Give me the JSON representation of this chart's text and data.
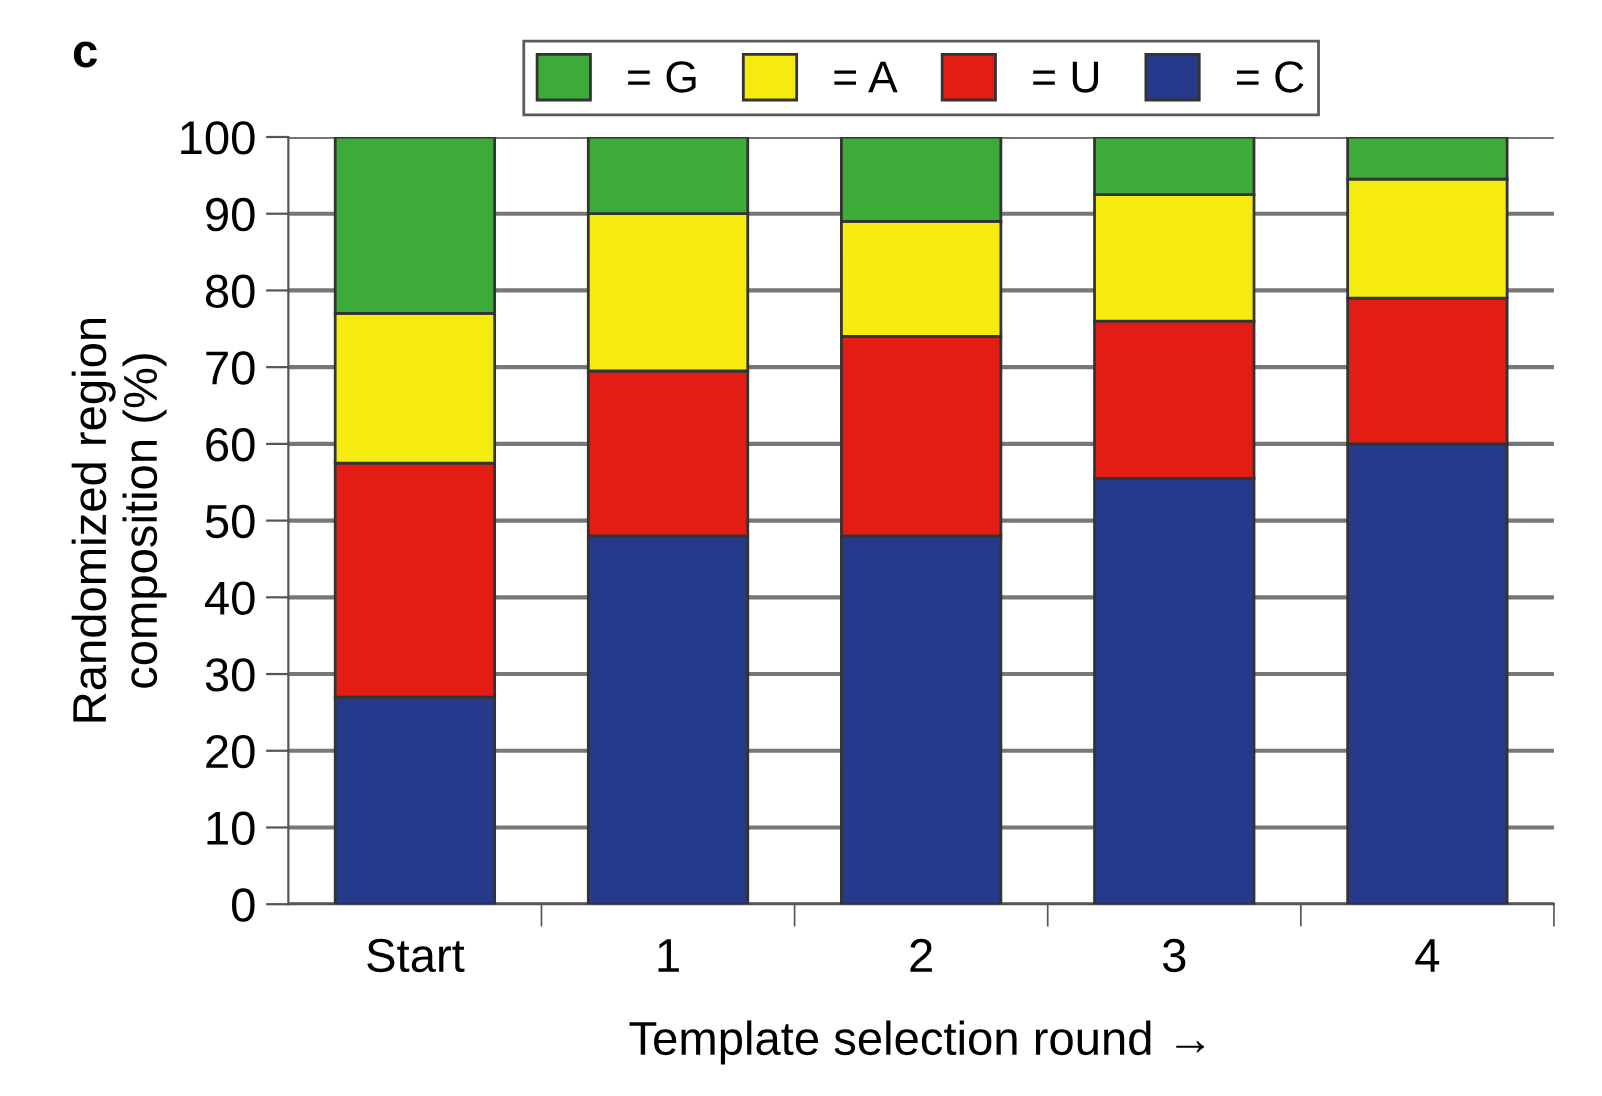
{
  "chart_data": {
    "type": "bar",
    "stacked": true,
    "categories": [
      "Start",
      "1",
      "2",
      "3",
      "4"
    ],
    "series": [
      {
        "name": "= C",
        "color": "#263a8c",
        "values": [
          27,
          48,
          48,
          55.5,
          60
        ]
      },
      {
        "name": "= U",
        "color": "#e31d13",
        "values": [
          30.5,
          21.5,
          26,
          20.5,
          19
        ]
      },
      {
        "name": "= A",
        "color": "#f6eb0f",
        "values": [
          19.5,
          20.5,
          15,
          16.5,
          15.5
        ]
      },
      {
        "name": "= G",
        "color": "#3dab37",
        "values": [
          23,
          10,
          11,
          7.5,
          5.5
        ]
      }
    ],
    "ylabel": "Randomized region\ncomposition (%)",
    "xlabel": "Template selection round →",
    "ylim": [
      0,
      100
    ],
    "yticks": [
      0,
      10,
      20,
      30,
      40,
      50,
      60,
      70,
      80,
      90,
      100
    ],
    "grid": "y",
    "legend": "top",
    "annotations": [
      "c"
    ]
  }
}
